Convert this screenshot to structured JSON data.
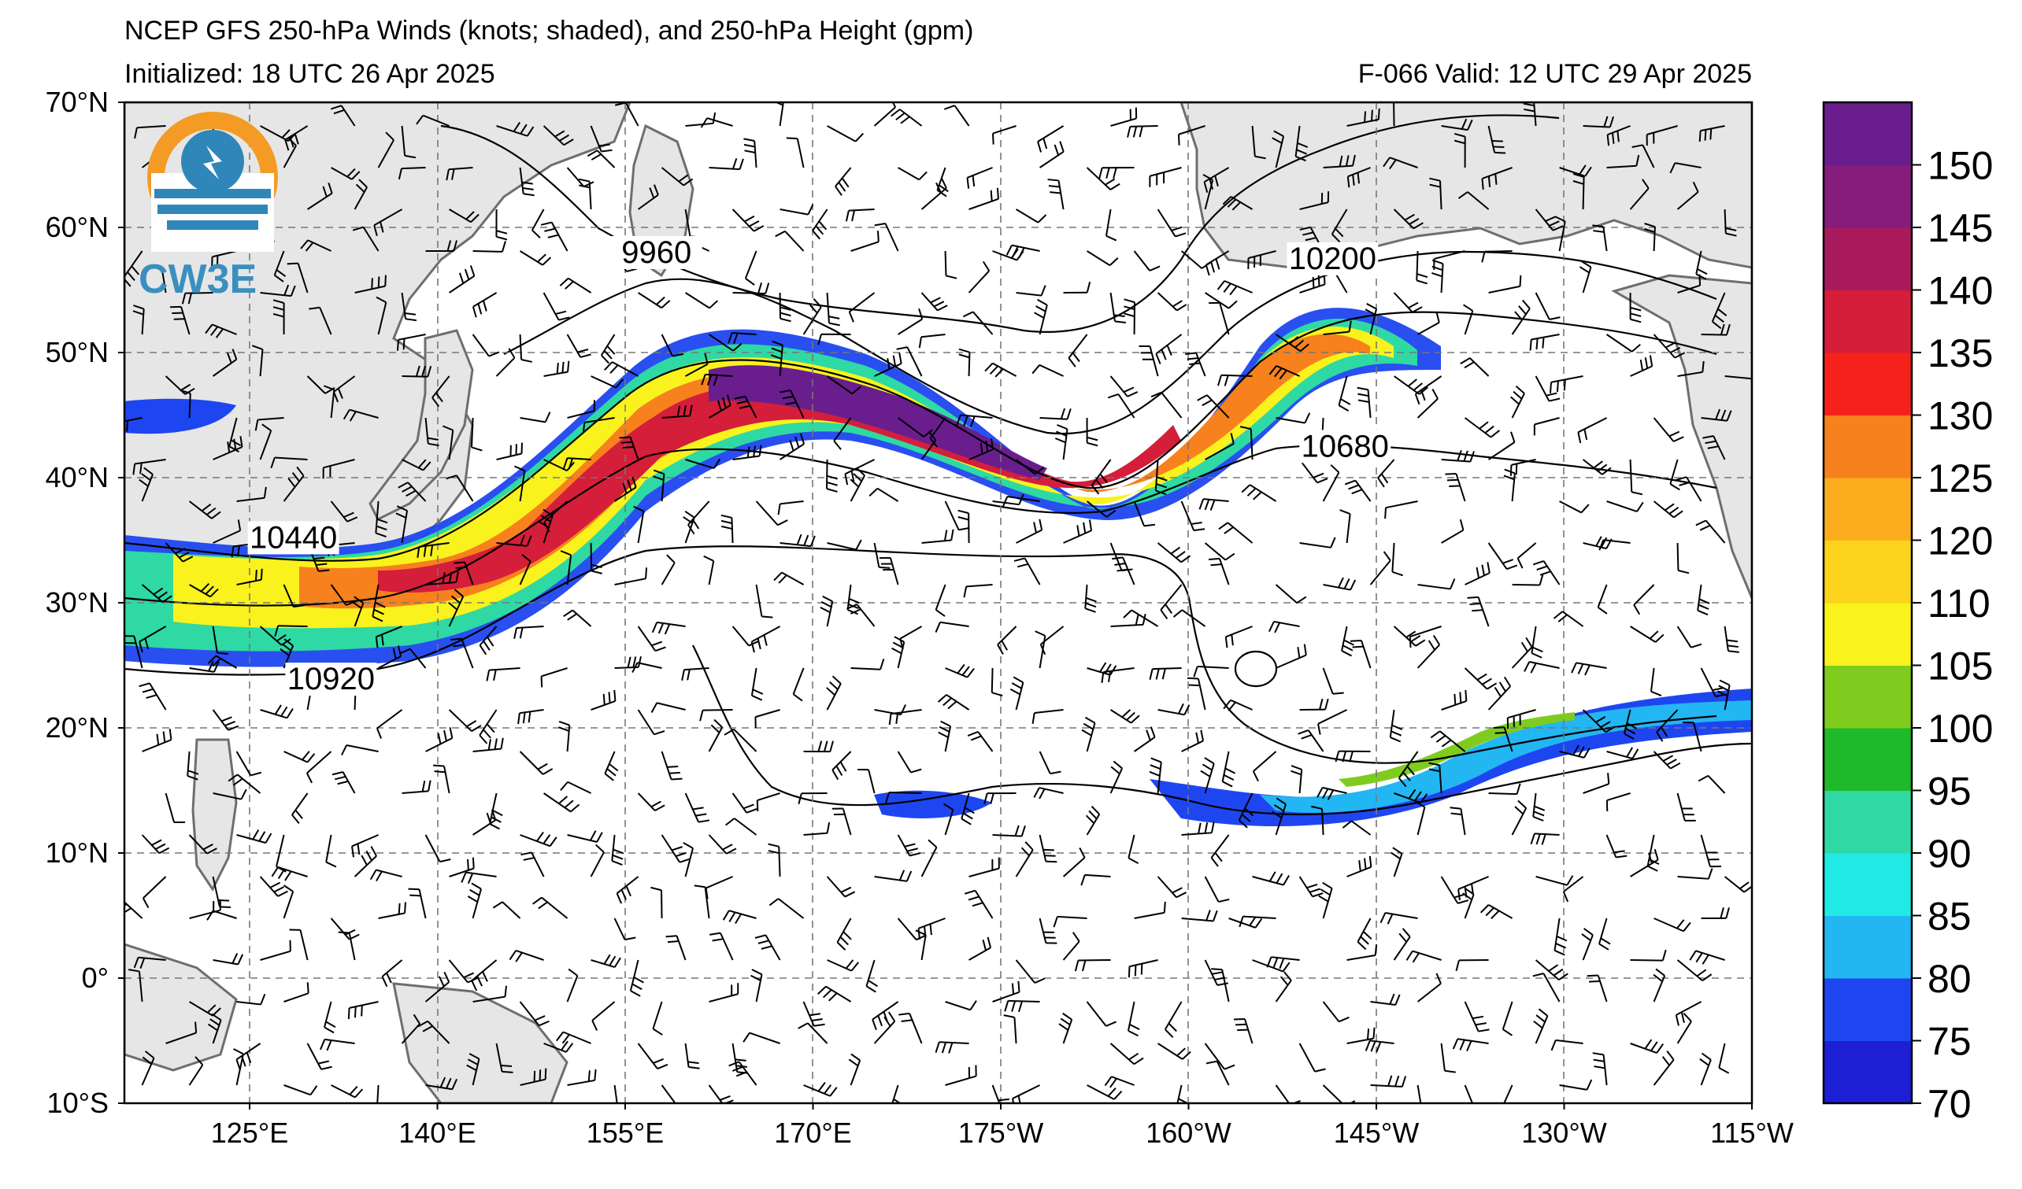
{
  "title": {
    "line1": "NCEP GFS 250-hPa Winds (knots; shaded), and 250-hPa Height (gpm)",
    "line2_left": "Initialized: 18 UTC 26 Apr 2025",
    "line2_right": "F-066  Valid: 12 UTC 29 Apr 2025"
  },
  "logo": {
    "text": "CW3E",
    "icon": "cw3e-water-drop-logo",
    "colors": {
      "orange": "#f39b25",
      "blue": "#2f86b8"
    }
  },
  "map": {
    "lat_labels": [
      "70°N",
      "60°N",
      "50°N",
      "40°N",
      "30°N",
      "20°N",
      "10°N",
      "0°",
      "10°S"
    ],
    "lon_labels": [
      "125°E",
      "140°E",
      "155°E",
      "170°E",
      "175°W",
      "160°W",
      "145°W",
      "130°W",
      "115°W"
    ],
    "lat_range": [
      -10,
      70
    ],
    "lon_range_east": [
      115,
      245
    ],
    "land_color": "#e6e6e6",
    "coast_color": "#6e6e6e",
    "contour_labels": [
      {
        "text": "9960",
        "lon": 157.5,
        "lat": 57.3
      },
      {
        "text": "10200",
        "lon": 211.5,
        "lat": 56.8
      },
      {
        "text": "10680",
        "lon": 212.5,
        "lat": 41.8
      },
      {
        "text": "10440",
        "lon": 128.5,
        "lat": 34.5
      },
      {
        "text": "10920",
        "lon": 131.5,
        "lat": 23.2
      }
    ]
  },
  "colorbar": {
    "labels": [
      "150",
      "145",
      "140",
      "135",
      "130",
      "125",
      "120",
      "110",
      "105",
      "100",
      "95",
      "90",
      "85",
      "80",
      "75",
      "70"
    ],
    "colors_bottom_to_top": [
      "#1c1fd4",
      "#1e46f0",
      "#22b6f2",
      "#21eae4",
      "#2ed9a4",
      "#1fba29",
      "#7fcc1f",
      "#f9f21d",
      "#fbd31c",
      "#fbad1e",
      "#f7811d",
      "#f5221b",
      "#d41e3a",
      "#a81a5c",
      "#861c7c",
      "#6a1e8e"
    ]
  }
}
